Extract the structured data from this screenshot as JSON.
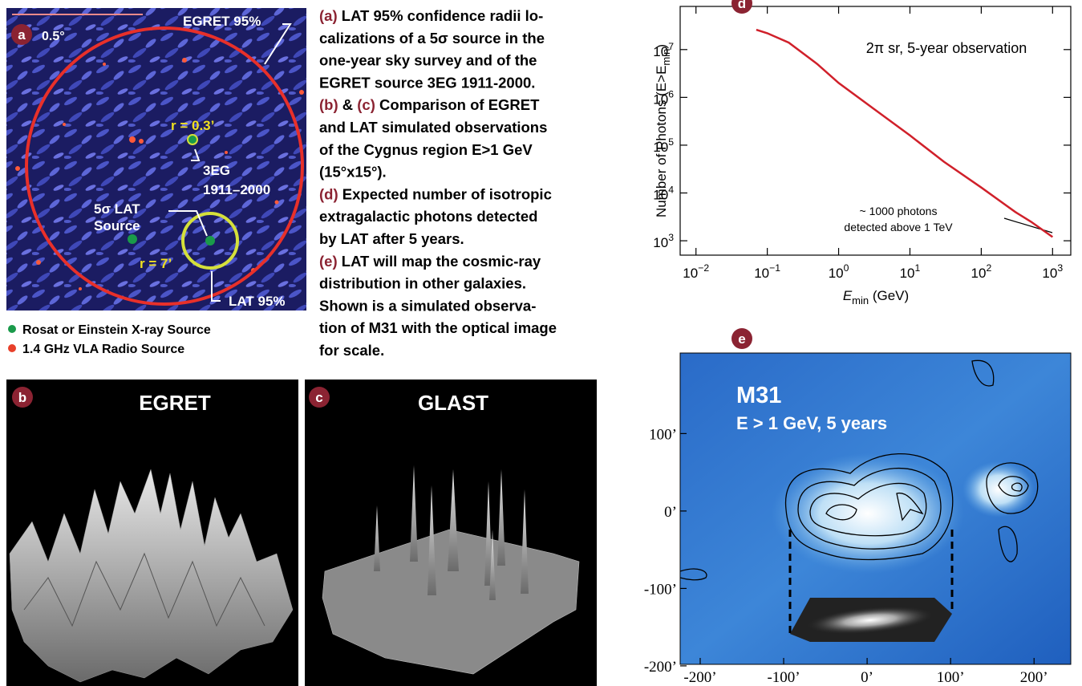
{
  "panel_a": {
    "label": "a",
    "scale": "0.5°",
    "egret_label": "EGRET 95%",
    "r_small": "r = 0.3’",
    "source_name": [
      "3EG",
      "1911–2000"
    ],
    "lat_source": [
      "5σ LAT",
      "Source"
    ],
    "r_large": "r = 7’",
    "lat_label": "LAT 95%",
    "legend": [
      {
        "name": "Rosat or Einstein X-ray Source",
        "color": "#1a9a4a"
      },
      {
        "name": "1.4 GHz VLA Radio Source",
        "color": "#e8402a"
      }
    ]
  },
  "caption": [
    [
      "(a)",
      " LAT 95% confidence radii lo-"
    ],
    [
      "calizations of a 5σ source in the"
    ],
    [
      "one-year sky survey and of the"
    ],
    [
      "EGRET source 3EG 1911-2000."
    ],
    [
      "(b)",
      " & ",
      "(c)",
      " Comparison of EGRET"
    ],
    [
      "and LAT simulated observations"
    ],
    [
      "of the Cygnus region E>1 GeV"
    ],
    [
      "(15°x15°)."
    ],
    [
      "(d)",
      " Expected number of isotropic"
    ],
    [
      "extragalactic photons detected"
    ],
    [
      "by LAT after 5 years."
    ],
    [
      "(e)",
      " LAT will map the cosmic-ray"
    ],
    [
      "distribution in other galaxies."
    ],
    [
      "Shown is a simulated observa-"
    ],
    [
      "tion of M31 with the optical image"
    ],
    [
      "for scale."
    ]
  ],
  "panel_b": {
    "label": "b",
    "title": "EGRET"
  },
  "panel_c": {
    "label": "c",
    "title": "GLAST"
  },
  "chart_data": [
    {
      "type": "line",
      "label": "d",
      "log_x": true,
      "log_y": true,
      "ylabel": {
        "text": "Number of Photons  (E>E",
        "sub": "min",
        "end": ")"
      },
      "xlabel": {
        "text": "E",
        "sub": "min",
        "end": "  (GeV)"
      },
      "annotations": [
        "2π sr, 5-year observation",
        "~ 1000 photons",
        "detected above 1 TeV"
      ],
      "x": [
        0.07,
        0.1,
        0.2,
        0.5,
        1,
        3,
        10,
        30,
        100,
        300,
        500,
        1000
      ],
      "series": [
        {
          "name": null,
          "color": "#d0202a",
          "values": [
            26000000,
            22000000,
            14000000,
            5000000,
            2000000,
            600000,
            160000,
            45000,
            13000,
            4000,
            2500,
            1200
          ]
        }
      ],
      "xlim": [
        0.006,
        1800
      ],
      "ylim": [
        500,
        80000000
      ],
      "xticks": [
        {
          "value": 0.01,
          "label": "10",
          "sup": "−2"
        },
        {
          "value": 0.1,
          "label": "10",
          "sup": "−1"
        },
        {
          "value": 1,
          "label": "10",
          "sup": "0"
        },
        {
          "value": 10,
          "label": "10",
          "sup": "1"
        },
        {
          "value": 100,
          "label": "10",
          "sup": "2"
        },
        {
          "value": 1000,
          "label": "10",
          "sup": "3"
        }
      ],
      "yticks": [
        {
          "value": 1000,
          "label": "10",
          "sup": "3"
        },
        {
          "value": 10000,
          "label": "10",
          "sup": "4"
        },
        {
          "value": 100000,
          "label": "10",
          "sup": "5"
        },
        {
          "value": 1000000,
          "label": "10",
          "sup": "6"
        },
        {
          "value": 10000000,
          "label": "10",
          "sup": "7"
        }
      ]
    },
    {
      "type": "image",
      "label": "e",
      "title": "M31",
      "subtitle": "E > 1 GeV, 5 years",
      "xlim": [
        -224,
        244
      ],
      "ylim": [
        -198,
        204
      ],
      "xticks": [
        {
          "value": -200,
          "label": "-200’"
        },
        {
          "value": -100,
          "label": "-100’"
        },
        {
          "value": 0,
          "label": "0’"
        },
        {
          "value": 100,
          "label": "100’"
        },
        {
          "value": 200,
          "label": "200’"
        }
      ],
      "yticks": [
        {
          "value": -200,
          "label": "-200’"
        },
        {
          "value": -100,
          "label": "-100’"
        },
        {
          "value": 0,
          "label": "0’"
        },
        {
          "value": 100,
          "label": "100’"
        }
      ]
    }
  ]
}
